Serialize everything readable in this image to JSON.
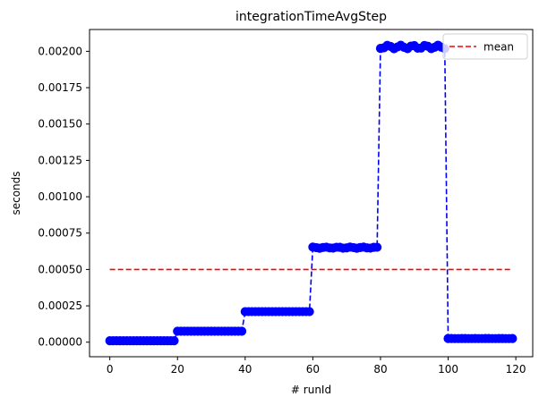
{
  "chart_data": {
    "type": "line",
    "title": "integrationTimeAvgStep",
    "xlabel": "# runId",
    "ylabel": "seconds",
    "xlim": [
      -6,
      125
    ],
    "ylim": [
      -0.0001,
      0.00215
    ],
    "xticks": [
      0,
      20,
      40,
      60,
      80,
      100,
      120
    ],
    "yticks": [
      0.0,
      0.00025,
      0.0005,
      0.00075,
      0.001,
      0.00125,
      0.0015,
      0.00175,
      0.002
    ],
    "ytick_labels": [
      "0.00000",
      "0.00025",
      "0.00050",
      "0.00075",
      "0.00100",
      "0.00125",
      "0.00150",
      "0.00175",
      "0.00200"
    ],
    "grid": false,
    "legend_position": "top-right",
    "series": [
      {
        "style": "dashed-with-circle-markers",
        "color": "#0000ff",
        "segments": [
          {
            "x_start": 0,
            "x_end": 19,
            "y": 1e-05
          },
          {
            "x_start": 20,
            "x_end": 39,
            "y": 7.5e-05
          },
          {
            "x_start": 40,
            "x_end": 59,
            "y": 0.00021
          },
          {
            "x_start": 60,
            "x_end": 79,
            "y": 0.00065
          },
          {
            "x_start": 80,
            "x_end": 99,
            "y": 0.00203
          },
          {
            "x_start": 100,
            "x_end": 119,
            "y": 2.5e-05
          }
        ]
      },
      {
        "name": "mean",
        "style": "dashed",
        "color": "#ff0000",
        "x": [
          0,
          119
        ],
        "y": [
          0.0005,
          0.0005
        ]
      }
    ]
  }
}
